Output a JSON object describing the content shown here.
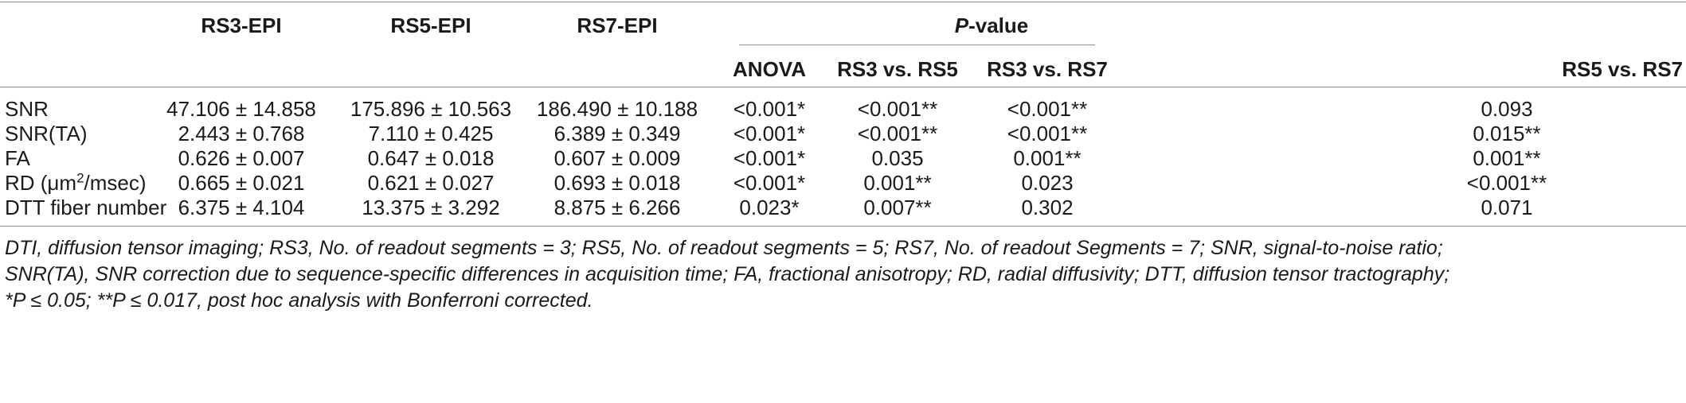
{
  "table": {
    "headers": {
      "rs3": "RS3-EPI",
      "rs5": "RS5-EPI",
      "rs7": "RS7-EPI",
      "pvalue_prefix": "P",
      "pvalue_suffix": "-value",
      "anova": "ANOVA",
      "rs3_vs_rs5": "RS3 vs. RS5",
      "rs3_vs_rs7": "RS3 vs. RS7",
      "rs5_vs_rs7": "RS5 vs. RS7"
    },
    "rows": [
      {
        "label": "SNR",
        "rs3": "47.106 ± 14.858",
        "rs5": "175.896 ± 10.563",
        "rs7": "186.490 ± 10.188",
        "anova": "<0.001*",
        "p35": "<0.001**",
        "p37": "<0.001**",
        "p57": "0.093"
      },
      {
        "label": "SNR(TA)",
        "rs3": "2.443 ± 0.768",
        "rs5": "7.110 ± 0.425",
        "rs7": "6.389 ± 0.349",
        "anova": "<0.001*",
        "p35": "<0.001**",
        "p37": "<0.001**",
        "p57": "0.015**"
      },
      {
        "label": "FA",
        "rs3": "0.626 ± 0.007",
        "rs5": "0.647 ± 0.018",
        "rs7": "0.607 ± 0.009",
        "anova": "<0.001*",
        "p35": "0.035",
        "p37": "0.001**",
        "p57": "0.001**"
      },
      {
        "label_pre": "RD (μm",
        "label_sup": "2",
        "label_post": "/msec)",
        "rs3": "0.665 ± 0.021",
        "rs5": "0.621 ± 0.027",
        "rs7": "0.693 ± 0.018",
        "anova": "<0.001*",
        "p35": "0.001**",
        "p37": "0.023",
        "p57": "<0.001**"
      },
      {
        "label": "DTT fiber number",
        "rs3": "6.375 ± 4.104",
        "rs5": "13.375 ± 3.292",
        "rs7": "8.875 ± 6.266",
        "anova": "0.023*",
        "p35": "0.007**",
        "p37": "0.302",
        "p57": "0.071"
      }
    ]
  },
  "footnote": {
    "line1": "DTI, diffusion tensor imaging; RS3, No. of readout segments = 3; RS5, No. of readout segments = 5; RS7, No. of readout Segments = 7; SNR, signal-to-noise ratio;",
    "line2": "SNR(TA), SNR correction due to sequence-specific differences in acquisition time; FA, fractional anisotropy; RD, radial diffusivity; DTT, diffusion tensor tractography;",
    "line3": "*P ≤ 0.05; **P ≤ 0.017, post hoc analysis with Bonferroni corrected."
  }
}
